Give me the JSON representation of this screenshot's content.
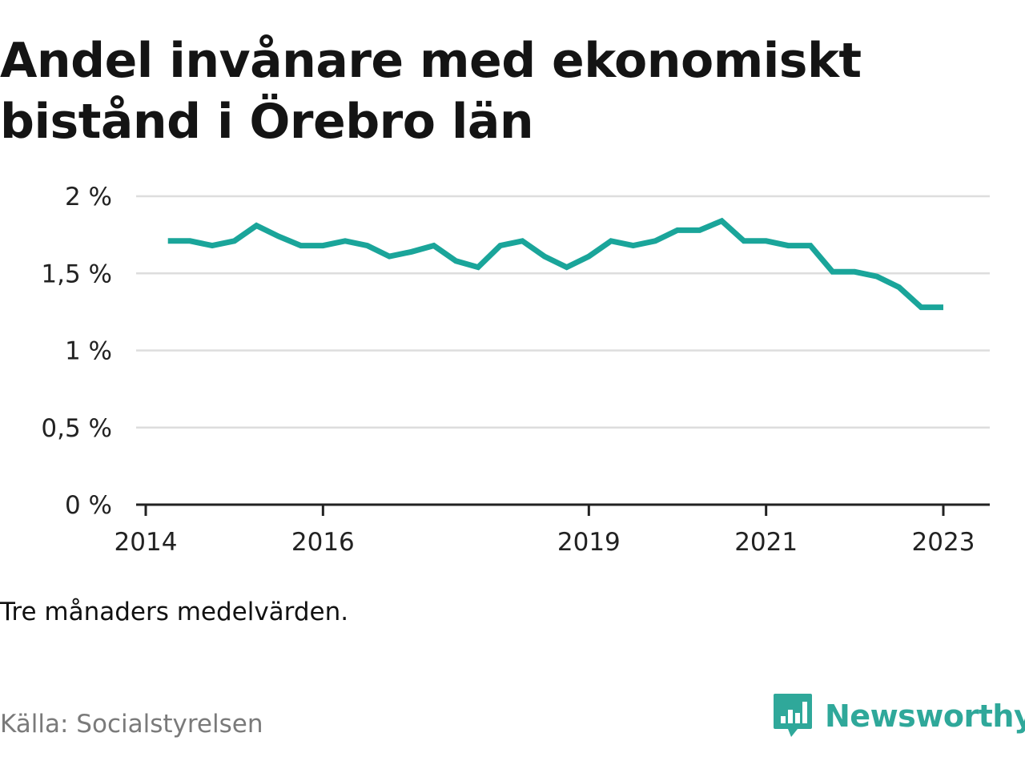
{
  "title": "Andel invånare med ekonomiskt bistånd i Örebro län",
  "note": "Tre månaders medelvärden.",
  "source": "Källa: Socialstyrelsen",
  "logo": {
    "text": "Newsworthy",
    "icon": "newsworthy-logo-icon"
  },
  "colors": {
    "line": "#1aa59a",
    "grid": "#dddddd",
    "axis": "#222222",
    "brand": "#2fa89a"
  },
  "chart_data": {
    "type": "line",
    "title": "Andel invånare med ekonomiskt bistånd i Örebro län",
    "xlabel": "",
    "ylabel": "",
    "ylim": [
      0,
      2
    ],
    "xlim": [
      2014.0,
      2023.25
    ],
    "grid": true,
    "y_ticks": [
      {
        "value": 0,
        "label": "0 %"
      },
      {
        "value": 0.5,
        "label": "0,5 %"
      },
      {
        "value": 1,
        "label": "1 %"
      },
      {
        "value": 1.5,
        "label": "1,5 %"
      },
      {
        "value": 2,
        "label": "2 %"
      }
    ],
    "x_ticks": [
      {
        "value": 2014,
        "label": "2014"
      },
      {
        "value": 2016,
        "label": "2016"
      },
      {
        "value": 2019,
        "label": "2019"
      },
      {
        "value": 2021,
        "label": "2021"
      },
      {
        "value": 2023,
        "label": "2023"
      }
    ],
    "series": [
      {
        "x": [
          "2014-04",
          "2014-07",
          "2014-10",
          "2015-01",
          "2015-04",
          "2015-07",
          "2015-10",
          "2016-01",
          "2016-04",
          "2016-07",
          "2016-10",
          "2017-01",
          "2017-04",
          "2017-07",
          "2017-10",
          "2018-01",
          "2018-04",
          "2018-07",
          "2018-10",
          "2019-01",
          "2019-04",
          "2019-07",
          "2019-10",
          "2020-01",
          "2020-04",
          "2020-07",
          "2020-10",
          "2021-01",
          "2021-04",
          "2021-07",
          "2021-10",
          "2022-01",
          "2022-04",
          "2022-07",
          "2022-10",
          "2023-01"
        ],
        "values": [
          1.71,
          1.71,
          1.68,
          1.71,
          1.81,
          1.74,
          1.68,
          1.68,
          1.71,
          1.68,
          1.61,
          1.64,
          1.68,
          1.58,
          1.54,
          1.68,
          1.71,
          1.61,
          1.54,
          1.61,
          1.71,
          1.68,
          1.71,
          1.78,
          1.78,
          1.84,
          1.71,
          1.71,
          1.68,
          1.68,
          1.51,
          1.51,
          1.48,
          1.41,
          1.28,
          1.28
        ]
      }
    ]
  }
}
